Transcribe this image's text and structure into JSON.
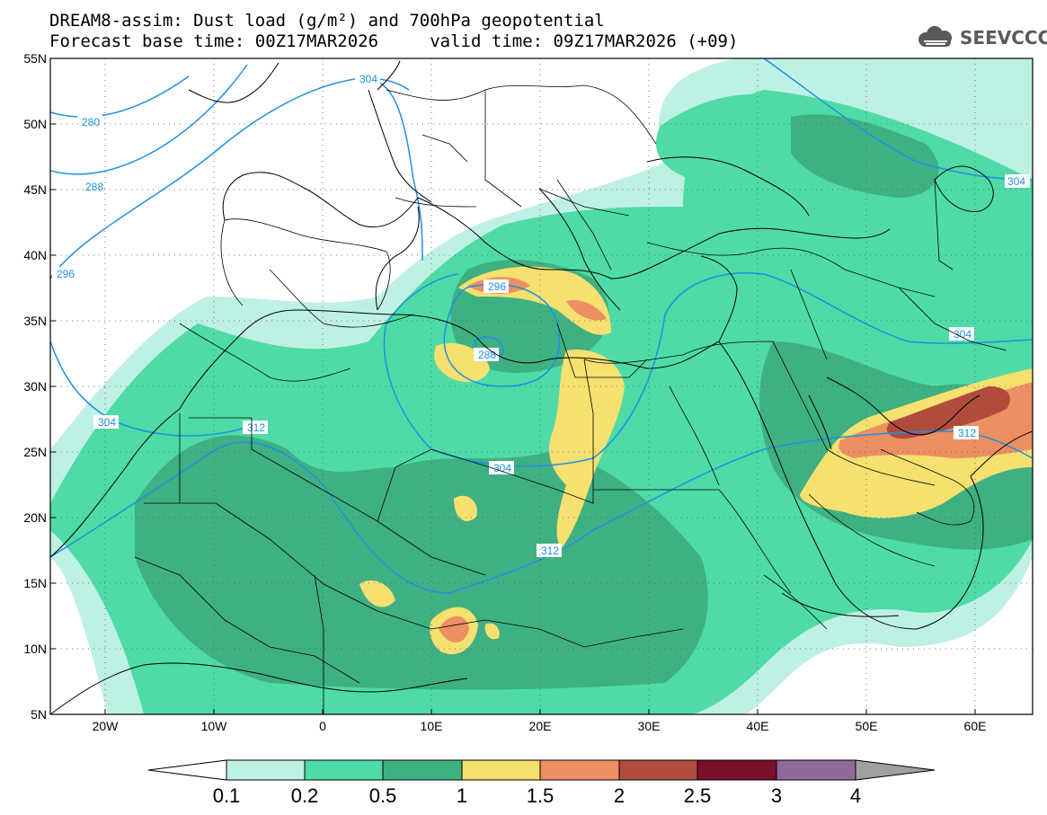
{
  "title": {
    "line1": "DREAM8-assim: Dust load (g/m²) and 700hPa geopotential",
    "line2": "Forecast base time: 00Z17MAR2026     valid time: 09Z17MAR2026 (+09)"
  },
  "logo": {
    "text": "SEEVCCC",
    "icon": "cloud-logo-icon"
  },
  "axes": {
    "lat_labels": [
      "55N",
      "50N",
      "45N",
      "40N",
      "35N",
      "30N",
      "25N",
      "20N",
      "15N",
      "10N",
      "5N"
    ],
    "lon_labels": [
      "20W",
      "10W",
      "0",
      "10E",
      "20E",
      "30E",
      "40E",
      "50E",
      "60E"
    ]
  },
  "contours": {
    "labels": [
      "280",
      "288",
      "296",
      "304",
      "304",
      "296",
      "288",
      "304",
      "312",
      "304",
      "312",
      "312",
      "304"
    ]
  },
  "colorbar": {
    "ticks": [
      "0.1",
      "0.2",
      "0.5",
      "1",
      "1.5",
      "2",
      "2.5",
      "3",
      "4"
    ],
    "colors": [
      "#ffffff",
      "#bff0e6",
      "#4fdba5",
      "#3fb082",
      "#f5e070",
      "#ec8f62",
      "#b04c3d",
      "#7a0f2c",
      "#8e6a9a",
      "#a0a0a0"
    ]
  },
  "colors": {
    "contour": "#1e90e6",
    "level_01": "#bff0e6",
    "level_02": "#4fdba5",
    "level_05": "#3fb082",
    "level_1": "#f5e070",
    "level_15": "#ec8f62",
    "level_2": "#b04c3d"
  }
}
